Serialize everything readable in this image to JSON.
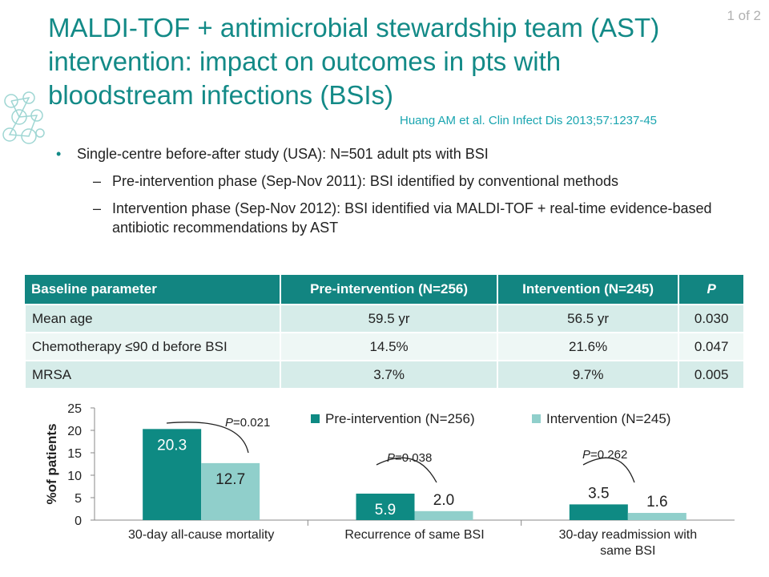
{
  "slide": {
    "number": "1 of 2",
    "title_lines": [
      "MALDI-TOF + antimicrobial stewardship team (AST)",
      "intervention: impact on outcomes in pts with",
      "bloodstream infections (BSIs)"
    ],
    "citation": "Huang AM et al. Clin Infect Dis 2013;57:1237-45"
  },
  "bullets": {
    "main": "Single-centre before-after study (USA): N=501 adult pts with BSI",
    "sub1": "Pre-intervention phase (Sep-Nov 2011): BSI identified by conventional methods",
    "sub2": "Intervention phase (Sep-Nov 2012): BSI identified via MALDI-TOF + real-time evidence-based antibiotic recommendations by AST",
    "dot": "•",
    "dash": "–"
  },
  "table": {
    "headers": [
      "Baseline parameter",
      "Pre-intervention (N=256)",
      "Intervention (N=245)",
      "P"
    ],
    "rows": [
      [
        "Mean age",
        "59.5 yr",
        "56.5 yr",
        "0.030"
      ],
      [
        "Chemotherapy ≤90 d before BSI",
        "14.5%",
        "21.6%",
        "0.047"
      ],
      [
        "MRSA",
        "3.7%",
        "9.7%",
        "0.005"
      ]
    ]
  },
  "chart_data": {
    "type": "bar",
    "ylabel": "%of patients",
    "ylim": [
      0,
      25
    ],
    "yticks": [
      0,
      5,
      10,
      15,
      20,
      25
    ],
    "categories": [
      [
        "30-day all-cause mortality"
      ],
      [
        "Recurrence of same BSI"
      ],
      [
        "30-day readmission with",
        "same BSI"
      ]
    ],
    "series": [
      {
        "name": "Pre-intervention (N=256)",
        "color": "#0e8a83",
        "values": [
          20.3,
          5.9,
          3.5
        ],
        "labels": [
          "20.3",
          "5.9",
          "3.5"
        ]
      },
      {
        "name": "Intervention (N=245)",
        "color": "#90cfcb",
        "values": [
          12.7,
          2.0,
          1.6
        ],
        "labels": [
          "12.7",
          "2.0",
          "1.6"
        ]
      }
    ],
    "p_values": [
      "=0.021",
      "=0.038",
      "=0.262"
    ],
    "p_letter": "P",
    "legend_position": "top-right",
    "grid": false
  },
  "colors": {
    "title": "#138a87",
    "citation": "#1aa5b0",
    "table_header": "#128581",
    "table_row_a": "#d6ece9",
    "table_row_b": "#eef7f5"
  }
}
